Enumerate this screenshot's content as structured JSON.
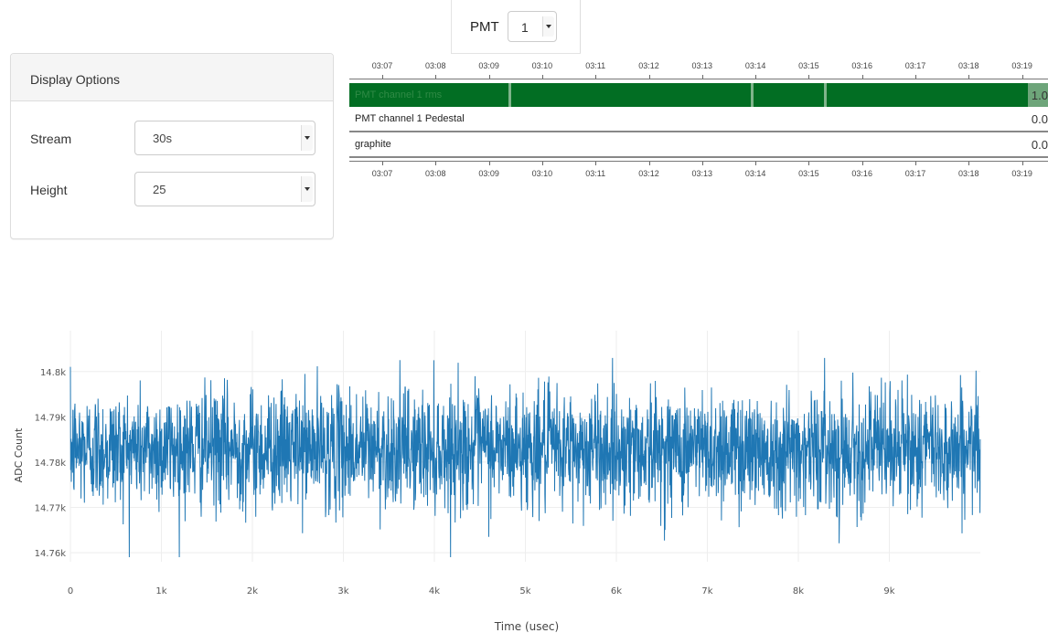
{
  "pmt": {
    "label": "PMT",
    "value": "1"
  },
  "display_options": {
    "title": "Display Options",
    "stream": {
      "label": "Stream",
      "value": "30s"
    },
    "height": {
      "label": "Height",
      "value": "25"
    }
  },
  "timeline": {
    "ticks": [
      "03:07",
      "03:08",
      "03:09",
      "03:10",
      "03:11",
      "03:12",
      "03:13",
      "03:14",
      "03:15",
      "03:16",
      "03:17",
      "03:18",
      "03:19"
    ],
    "rows": [
      {
        "label": "PMT channel 1 rms",
        "value": "1.0",
        "color": "#026e23"
      },
      {
        "label": "PMT channel 1 Pedestal",
        "value": "0.0"
      },
      {
        "label": "graphite",
        "value": "0.0"
      }
    ]
  },
  "chart_data": {
    "type": "line",
    "xlabel": "Time (usec)",
    "ylabel": "ADC Count",
    "x_ticks": [
      "0",
      "1k",
      "2k",
      "3k",
      "4k",
      "5k",
      "6k",
      "7k",
      "8k",
      "9k"
    ],
    "y_ticks": [
      "14.8k",
      "14.79k",
      "14.78k",
      "14.77k",
      "14.76k"
    ],
    "xlim": [
      0,
      10000
    ],
    "ylim": [
      14758,
      14805
    ],
    "series": [
      {
        "color": "#1f77b4",
        "mean": 14783,
        "std": 6.5,
        "min": 14759,
        "max": 14803,
        "n_points": 10000
      }
    ]
  }
}
